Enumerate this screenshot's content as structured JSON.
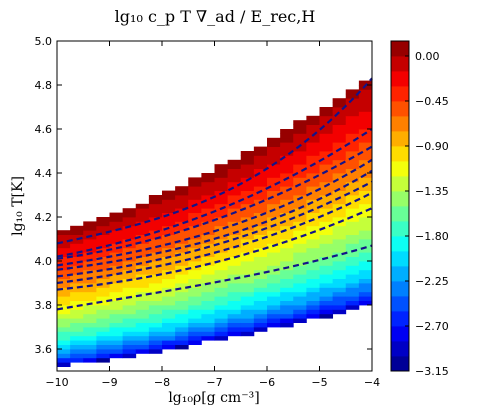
{
  "chart_data": {
    "type": "heatmap",
    "title": "lg₁₀ c_p T ∇_ad / E_rec,H",
    "xlabel": "lg₁₀ρ[g  cm⁻³]",
    "ylabel": "lg₁₀ T[K]",
    "xlim": [
      -10,
      -4
    ],
    "ylim": [
      3.5,
      5.0
    ],
    "x_ticks": [
      -10,
      -9,
      -8,
      -7,
      -6,
      -5,
      -4
    ],
    "x_tick_labels": [
      "−10",
      "−9",
      "−8",
      "−7",
      "−6",
      "−5",
      "−4"
    ],
    "y_ticks": [
      3.6,
      3.8,
      4.0,
      4.2,
      4.4,
      4.6,
      4.8,
      5.0
    ],
    "y_tick_labels": [
      "3.6",
      "3.8",
      "4.0",
      "4.2",
      "4.4",
      "4.6",
      "4.8",
      "5.0"
    ],
    "colorbar": {
      "range": [
        -3.15,
        0.15
      ],
      "ticks": [
        0.0,
        -0.45,
        -0.9,
        -1.35,
        -1.8,
        -2.25,
        -2.7,
        -3.15
      ],
      "tick_labels": [
        "0.00",
        "−0.45",
        "−0.90",
        "−1.35",
        "−1.80",
        "−2.25",
        "−2.70",
        "−3.15"
      ],
      "colormap": "jet",
      "n_bins": 22
    },
    "heatmap_grid": {
      "x_start": -10,
      "dx": 0.25,
      "y_start": 3.5,
      "dy": 0.02
    },
    "field_model": {
      "lower_boundary": {
        "a": 4.06,
        "b": 0.14,
        "c": 0.48
      },
      "upper_boundary": {
        "a": 4.85,
        "b": 0.06,
        "c": 0.7
      },
      "value_at_lower_edge": -3.15,
      "value_at_upper_edge": 0.1,
      "exponent": 0.55
    },
    "series": [
      {
        "values": [
          [
            -10,
            3.78
          ],
          [
            -8,
            3.86
          ],
          [
            -6,
            3.95
          ],
          [
            -4,
            4.07
          ]
        ]
      },
      {
        "values": [
          [
            -10,
            3.87
          ],
          [
            -8,
            3.94
          ],
          [
            -6,
            4.06
          ],
          [
            -4,
            4.24
          ]
        ]
      },
      {
        "values": [
          [
            -10,
            3.9
          ],
          [
            -8,
            3.98
          ],
          [
            -6,
            4.11
          ],
          [
            -4,
            4.31
          ]
        ]
      },
      {
        "values": [
          [
            -10,
            3.93
          ],
          [
            -8,
            4.01
          ],
          [
            -6,
            4.15
          ],
          [
            -4,
            4.36
          ]
        ]
      },
      {
        "values": [
          [
            -10,
            3.96
          ],
          [
            -8,
            4.04
          ],
          [
            -6,
            4.18
          ],
          [
            -4,
            4.41
          ]
        ]
      },
      {
        "values": [
          [
            -10,
            3.98
          ],
          [
            -8,
            4.07
          ],
          [
            -6,
            4.22
          ],
          [
            -4,
            4.46
          ]
        ]
      },
      {
        "values": [
          [
            -10,
            4.01
          ],
          [
            -8,
            4.11
          ],
          [
            -6,
            4.28
          ],
          [
            -4,
            4.52
          ]
        ]
      },
      {
        "values": [
          [
            -10,
            4.02
          ],
          [
            -8,
            4.14
          ],
          [
            -6,
            4.33
          ],
          [
            -4,
            4.6
          ]
        ]
      },
      {
        "values": [
          [
            -10,
            4.08
          ],
          [
            -8,
            4.2
          ],
          [
            -6,
            4.42
          ],
          [
            -4,
            4.83
          ]
        ]
      }
    ],
    "contour_color": "#13138a"
  }
}
